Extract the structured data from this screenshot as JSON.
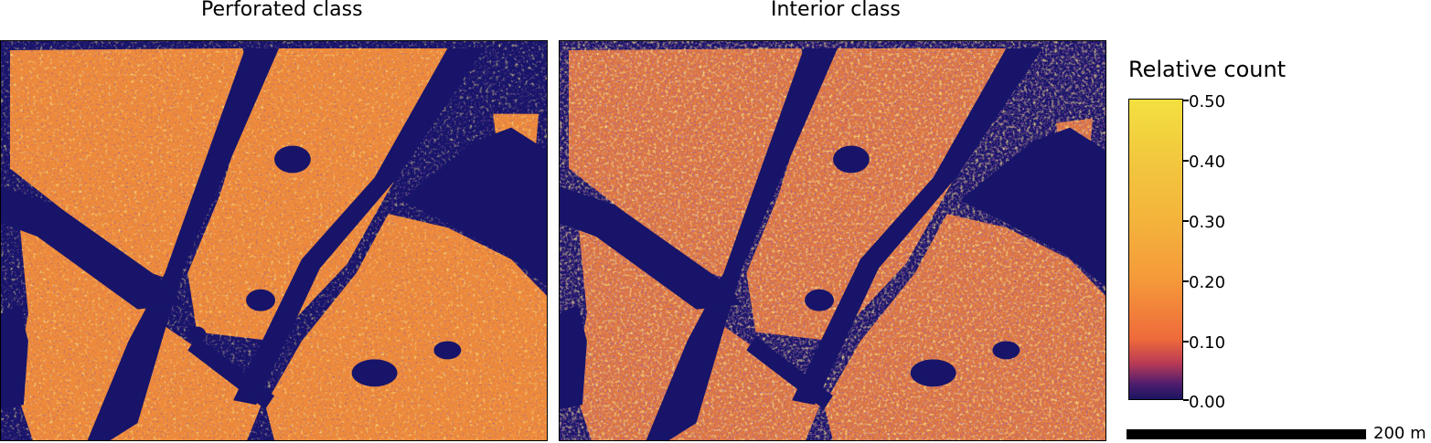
{
  "panels": [
    {
      "title": "Perforated class"
    },
    {
      "title": "Interior class"
    }
  ],
  "legend": {
    "title": "Relative count",
    "ticks": [
      "0.50",
      "0.40",
      "0.30",
      "0.20",
      "0.10",
      "0.00"
    ],
    "min": 0.0,
    "max": 0.5,
    "colors": [
      "#1a1460",
      "#4e1d6e",
      "#b93b55",
      "#ee6a3b",
      "#f59a3a",
      "#f4b43c",
      "#f2c83e",
      "#f3e040"
    ]
  },
  "scale_bar": {
    "label": "200 m"
  },
  "colors": {
    "background_water": "#17146a",
    "road": "#17146a"
  }
}
